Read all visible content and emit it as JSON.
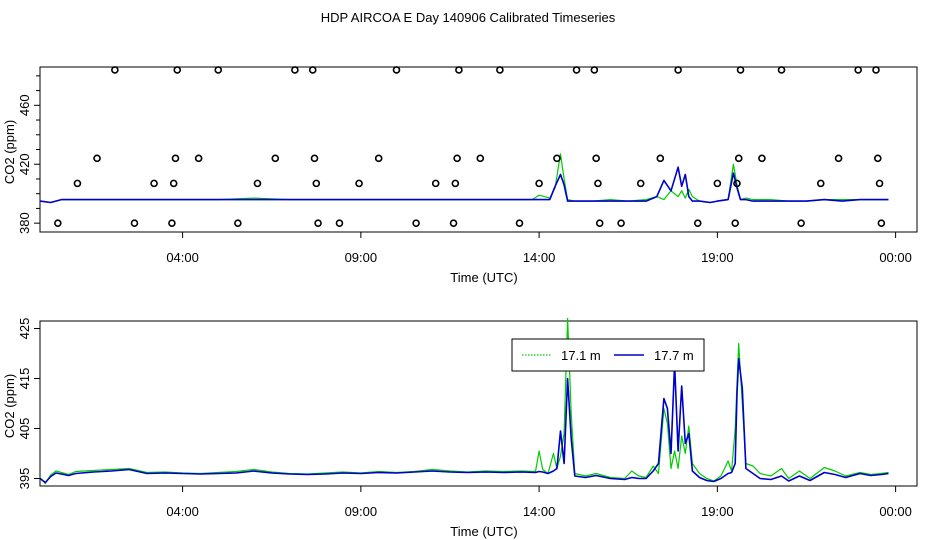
{
  "title": "HDP AIRCOA E  Day 140906  Calibrated Timeseries",
  "colors": {
    "green": "#00cc00",
    "blue": "#0000cc",
    "axis": "#000000"
  },
  "chart_data": [
    {
      "type": "scatter",
      "xlabel": "Time (UTC)",
      "ylabel": "CO2 (ppm)",
      "xlim": [
        0.0,
        24.6
      ],
      "ylim": [
        374,
        486
      ],
      "xticks": [
        4,
        9,
        14,
        19,
        24
      ],
      "xtick_labels": [
        "04:00",
        "09:00",
        "14:00",
        "19:00",
        "00:00"
      ],
      "yticks": [
        380,
        420,
        460
      ],
      "ytick_labels": [
        "380",
        "420",
        "460"
      ],
      "calibration_points": [
        {
          "x": 0.5,
          "y": 380
        },
        {
          "x": 1.05,
          "y": 407
        },
        {
          "x": 1.6,
          "y": 424
        },
        {
          "x": 2.1,
          "y": 484
        },
        {
          "x": 2.65,
          "y": 380
        },
        {
          "x": 3.2,
          "y": 407
        },
        {
          "x": 3.7,
          "y": 380
        },
        {
          "x": 3.75,
          "y": 407
        },
        {
          "x": 3.8,
          "y": 424
        },
        {
          "x": 3.85,
          "y": 484
        },
        {
          "x": 4.45,
          "y": 424
        },
        {
          "x": 5.0,
          "y": 484
        },
        {
          "x": 5.55,
          "y": 380
        },
        {
          "x": 6.1,
          "y": 407
        },
        {
          "x": 6.6,
          "y": 424
        },
        {
          "x": 7.15,
          "y": 484
        },
        {
          "x": 7.65,
          "y": 484
        },
        {
          "x": 7.7,
          "y": 424
        },
        {
          "x": 7.75,
          "y": 407
        },
        {
          "x": 7.8,
          "y": 380
        },
        {
          "x": 8.4,
          "y": 380
        },
        {
          "x": 8.95,
          "y": 407
        },
        {
          "x": 9.5,
          "y": 424
        },
        {
          "x": 10.0,
          "y": 484
        },
        {
          "x": 10.55,
          "y": 380
        },
        {
          "x": 11.1,
          "y": 407
        },
        {
          "x": 11.6,
          "y": 380
        },
        {
          "x": 11.65,
          "y": 407
        },
        {
          "x": 11.7,
          "y": 424
        },
        {
          "x": 11.75,
          "y": 484
        },
        {
          "x": 12.35,
          "y": 424
        },
        {
          "x": 12.9,
          "y": 484
        },
        {
          "x": 13.45,
          "y": 380
        },
        {
          "x": 14.0,
          "y": 407
        },
        {
          "x": 14.5,
          "y": 424
        },
        {
          "x": 15.05,
          "y": 484
        },
        {
          "x": 15.55,
          "y": 484
        },
        {
          "x": 15.6,
          "y": 424
        },
        {
          "x": 15.65,
          "y": 407
        },
        {
          "x": 15.7,
          "y": 380
        },
        {
          "x": 16.3,
          "y": 380
        },
        {
          "x": 16.85,
          "y": 407
        },
        {
          "x": 17.4,
          "y": 424
        },
        {
          "x": 17.9,
          "y": 484
        },
        {
          "x": 18.45,
          "y": 380
        },
        {
          "x": 19.0,
          "y": 407
        },
        {
          "x": 19.5,
          "y": 380
        },
        {
          "x": 19.55,
          "y": 407
        },
        {
          "x": 19.6,
          "y": 424
        },
        {
          "x": 19.65,
          "y": 484
        },
        {
          "x": 20.25,
          "y": 424
        },
        {
          "x": 20.8,
          "y": 484
        },
        {
          "x": 21.35,
          "y": 380
        },
        {
          "x": 21.9,
          "y": 407
        },
        {
          "x": 22.4,
          "y": 424
        },
        {
          "x": 22.95,
          "y": 484
        },
        {
          "x": 23.45,
          "y": 484
        },
        {
          "x": 23.5,
          "y": 424
        },
        {
          "x": 23.55,
          "y": 407
        },
        {
          "x": 23.6,
          "y": 380
        }
      ],
      "series": [
        {
          "color": "green",
          "x": [
            0.0,
            0.3,
            0.6,
            1.0,
            1.5,
            2.0,
            3.0,
            4.0,
            5.0,
            6.0,
            7.0,
            8.0,
            9.0,
            10.0,
            11.0,
            12.0,
            13.0,
            13.8,
            14.0,
            14.3,
            14.45,
            14.6,
            14.7,
            14.8,
            15.0,
            15.5,
            16.0,
            16.5,
            17.0,
            17.3,
            17.5,
            17.7,
            17.9,
            18.0,
            18.1,
            18.2,
            18.3,
            18.5,
            18.8,
            19.0,
            19.3,
            19.45,
            19.55,
            19.65,
            19.8,
            20.0,
            20.5,
            21.0,
            21.5,
            22.0,
            22.5,
            23.0,
            23.5,
            23.8
          ],
          "y": [
            395,
            394,
            396,
            396,
            396,
            396,
            396,
            396,
            396,
            397,
            396,
            396,
            396,
            396,
            396,
            396,
            396,
            396,
            399,
            397,
            404,
            427,
            410,
            396,
            395,
            395,
            396,
            395,
            396,
            398,
            396,
            402,
            398,
            402,
            397,
            403,
            398,
            395,
            394,
            395,
            396,
            420,
            406,
            396,
            397,
            396,
            396,
            395,
            395,
            396,
            396,
            396,
            396,
            396
          ]
        },
        {
          "color": "blue",
          "x": [
            0.0,
            0.3,
            0.6,
            1.0,
            1.5,
            2.0,
            3.0,
            4.0,
            5.0,
            6.0,
            7.0,
            8.0,
            9.0,
            10.0,
            11.0,
            12.0,
            13.0,
            13.8,
            14.0,
            14.3,
            14.45,
            14.6,
            14.7,
            14.8,
            15.0,
            15.5,
            16.0,
            16.5,
            17.0,
            17.3,
            17.5,
            17.7,
            17.9,
            18.0,
            18.1,
            18.2,
            18.3,
            18.5,
            18.8,
            19.0,
            19.3,
            19.45,
            19.55,
            19.65,
            19.8,
            20.0,
            20.5,
            21.0,
            21.5,
            22.0,
            22.5,
            23.0,
            23.5,
            23.8
          ],
          "y": [
            395,
            394,
            396,
            396,
            396,
            396,
            396,
            396,
            396,
            396,
            396,
            396,
            396,
            396,
            396,
            396,
            396,
            396,
            396,
            396,
            405,
            413,
            406,
            395,
            395,
            395,
            395,
            395,
            395,
            398,
            409,
            402,
            418,
            405,
            413,
            398,
            395,
            395,
            394,
            395,
            396,
            414,
            404,
            396,
            396,
            395,
            395,
            395,
            395,
            396,
            395,
            396,
            396,
            396
          ]
        }
      ]
    },
    {
      "type": "line",
      "xlabel": "Time (UTC)",
      "ylabel": "CO2 (ppm)",
      "xlim": [
        0.0,
        24.6
      ],
      "ylim": [
        393.5,
        426.5
      ],
      "xticks": [
        4,
        9,
        14,
        19,
        24
      ],
      "xtick_labels": [
        "04:00",
        "09:00",
        "14:00",
        "19:00",
        "00:00"
      ],
      "yticks": [
        395,
        405,
        415,
        425
      ],
      "ytick_labels": [
        "395",
        "405",
        "415",
        "425"
      ],
      "legend_position": "top-right",
      "series": [
        {
          "name": "17.1 m",
          "color": "green",
          "x": [
            0.0,
            0.15,
            0.3,
            0.45,
            0.6,
            0.8,
            1.0,
            1.5,
            2.0,
            2.5,
            3.0,
            3.5,
            4.0,
            4.5,
            5.0,
            5.5,
            6.0,
            6.5,
            7.0,
            7.5,
            8.0,
            8.5,
            9.0,
            9.5,
            10.0,
            10.5,
            11.0,
            11.5,
            12.0,
            12.5,
            13.0,
            13.5,
            13.9,
            14.0,
            14.1,
            14.25,
            14.4,
            14.5,
            14.6,
            14.7,
            14.8,
            14.9,
            15.0,
            15.3,
            15.6,
            16.0,
            16.4,
            16.6,
            16.8,
            17.0,
            17.2,
            17.35,
            17.5,
            17.6,
            17.7,
            17.8,
            17.9,
            18.0,
            18.1,
            18.2,
            18.3,
            18.5,
            18.7,
            18.9,
            19.1,
            19.3,
            19.4,
            19.5,
            19.55,
            19.6,
            19.7,
            19.8,
            20.0,
            20.2,
            20.5,
            20.8,
            21.0,
            21.3,
            21.6,
            22.0,
            22.3,
            22.6,
            23.0,
            23.3,
            23.6,
            23.8
          ],
          "y": [
            395.2,
            394.0,
            395.7,
            396.5,
            396.2,
            395.8,
            396.4,
            396.6,
            396.8,
            397.0,
            396.2,
            396.3,
            396.1,
            396.0,
            396.2,
            396.4,
            396.8,
            396.3,
            396.0,
            395.9,
            396.1,
            396.3,
            396.1,
            396.4,
            396.2,
            396.4,
            396.8,
            396.5,
            396.3,
            396.5,
            396.4,
            396.5,
            396.4,
            400.5,
            396.8,
            396.0,
            400.0,
            397.0,
            399.5,
            404.0,
            427.0,
            408.0,
            396.0,
            395.5,
            396.0,
            395.2,
            395.0,
            396.5,
            395.5,
            395.2,
            397.5,
            396.0,
            409.0,
            406.0,
            397.0,
            400.5,
            397.0,
            403.5,
            400.0,
            405.5,
            398.0,
            396.0,
            395.0,
            394.5,
            395.5,
            398.5,
            396.5,
            405.0,
            414.0,
            422.0,
            410.0,
            398.0,
            397.5,
            396.0,
            395.5,
            397.0,
            395.0,
            396.5,
            395.0,
            397.2,
            396.5,
            395.5,
            396.2,
            395.8,
            396.0,
            396.2
          ]
        },
        {
          "name": "17.7 m",
          "color": "blue",
          "x": [
            0.0,
            0.15,
            0.3,
            0.45,
            0.6,
            0.8,
            1.0,
            1.5,
            2.0,
            2.5,
            3.0,
            3.5,
            4.0,
            4.5,
            5.0,
            5.5,
            6.0,
            6.5,
            7.0,
            7.5,
            8.0,
            8.5,
            9.0,
            9.5,
            10.0,
            10.5,
            11.0,
            11.5,
            12.0,
            12.5,
            13.0,
            13.5,
            13.9,
            14.0,
            14.1,
            14.25,
            14.4,
            14.5,
            14.6,
            14.7,
            14.8,
            14.9,
            15.0,
            15.3,
            15.6,
            16.0,
            16.4,
            16.6,
            16.8,
            17.0,
            17.2,
            17.35,
            17.5,
            17.6,
            17.7,
            17.8,
            17.9,
            18.0,
            18.1,
            18.2,
            18.3,
            18.5,
            18.7,
            18.9,
            19.1,
            19.3,
            19.4,
            19.5,
            19.55,
            19.6,
            19.7,
            19.8,
            20.0,
            20.2,
            20.5,
            20.8,
            21.0,
            21.3,
            21.6,
            22.0,
            22.3,
            22.6,
            23.0,
            23.3,
            23.6,
            23.8
          ],
          "y": [
            395.0,
            394.2,
            395.4,
            396.1,
            395.9,
            395.6,
            396.0,
            396.3,
            396.5,
            396.8,
            396.0,
            396.1,
            396.0,
            395.9,
            396.0,
            396.1,
            396.5,
            396.1,
            395.9,
            395.8,
            395.9,
            396.1,
            396.0,
            396.2,
            396.1,
            396.3,
            396.5,
            396.3,
            396.2,
            396.3,
            396.2,
            396.3,
            396.2,
            396.4,
            396.3,
            396.0,
            396.5,
            397.0,
            404.5,
            398.0,
            415.0,
            403.0,
            395.5,
            395.2,
            395.6,
            395.0,
            394.8,
            395.2,
            395.0,
            395.0,
            396.5,
            398.0,
            411.0,
            409.0,
            400.0,
            418.0,
            400.5,
            413.5,
            402.0,
            404.0,
            396.5,
            395.2,
            394.6,
            394.4,
            395.0,
            396.0,
            396.2,
            398.0,
            412.0,
            419.0,
            413.0,
            397.0,
            396.0,
            395.0,
            394.8,
            395.5,
            394.5,
            395.5,
            394.6,
            396.2,
            395.8,
            395.2,
            396.0,
            395.6,
            395.8,
            396.0
          ]
        }
      ]
    }
  ]
}
